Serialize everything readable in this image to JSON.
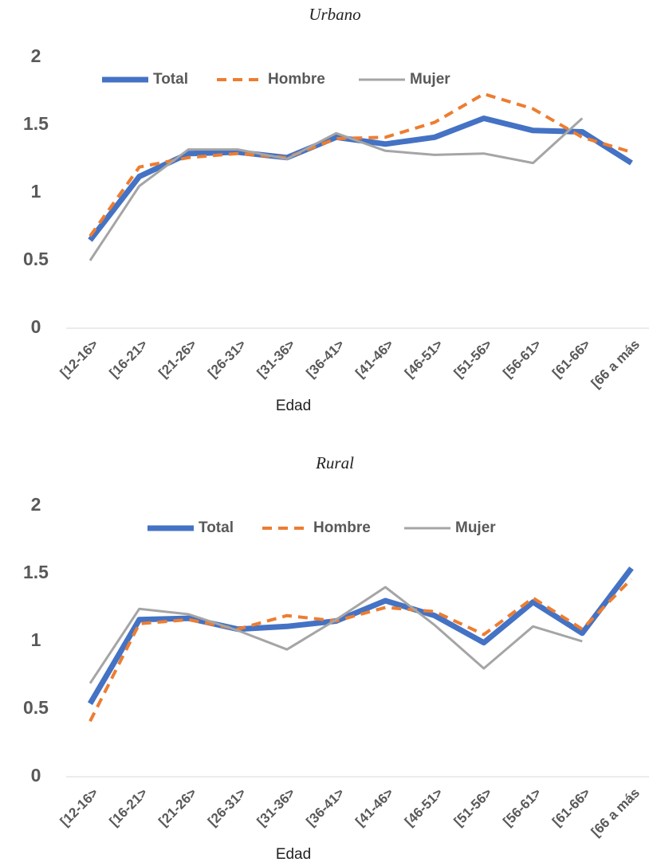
{
  "chart_data": [
    {
      "type": "line",
      "title": "Urbano",
      "x_label": "Edad",
      "categories": [
        "[12-16>",
        "[16-21>",
        "[21-26>",
        "[26-31>",
        "[31-36>",
        "[36-41>",
        "[41-46>",
        "[46-51>",
        "[51-56>",
        "[56-61>",
        "[61-66>",
        "[66 a más"
      ],
      "series": [
        {
          "name": "Total",
          "color": "#4472c4",
          "values": [
            0.65,
            1.12,
            1.29,
            1.3,
            1.26,
            1.41,
            1.36,
            1.41,
            1.55,
            1.46,
            1.45,
            1.22
          ]
        },
        {
          "name": "Hombre",
          "color": "#ed7d31",
          "values": [
            0.68,
            1.19,
            1.26,
            1.29,
            1.26,
            1.4,
            1.41,
            1.52,
            1.73,
            1.62,
            1.41,
            1.3
          ]
        },
        {
          "name": "Mujer",
          "color": "#a5a5a5",
          "values": [
            0.5,
            1.05,
            1.32,
            1.32,
            1.25,
            1.44,
            1.31,
            1.28,
            1.29,
            1.22,
            1.55,
            null
          ]
        }
      ],
      "ylim": [
        0,
        2
      ],
      "yticks": [
        0,
        0.5,
        1,
        1.5,
        2
      ],
      "grid": false,
      "legend": "top"
    },
    {
      "type": "line",
      "title": "Rural",
      "x_label": "Edad",
      "categories": [
        "[12-16>",
        "[16-21>",
        "[21-26>",
        "[26-31>",
        "[31-36>",
        "[36-41>",
        "[41-46>",
        "[46-51>",
        "[51-56>",
        "[56-61>",
        "[61-66>",
        "[66 a más"
      ],
      "series": [
        {
          "name": "Total",
          "color": "#4472c4",
          "values": [
            0.54,
            1.16,
            1.17,
            1.09,
            1.11,
            1.15,
            1.3,
            1.19,
            0.99,
            1.29,
            1.06,
            1.54
          ]
        },
        {
          "name": "Hombre",
          "color": "#ed7d31",
          "values": [
            0.41,
            1.13,
            1.16,
            1.09,
            1.19,
            1.15,
            1.25,
            1.22,
            1.05,
            1.32,
            1.09,
            1.46
          ]
        },
        {
          "name": "Mujer",
          "color": "#a5a5a5",
          "values": [
            0.69,
            1.24,
            1.2,
            1.08,
            0.94,
            1.16,
            1.4,
            1.12,
            0.8,
            1.11,
            1.0,
            null
          ]
        }
      ],
      "ylim": [
        0,
        2
      ],
      "yticks": [
        0,
        0.5,
        1,
        1.5,
        2
      ],
      "grid": false,
      "legend": "top"
    }
  ]
}
